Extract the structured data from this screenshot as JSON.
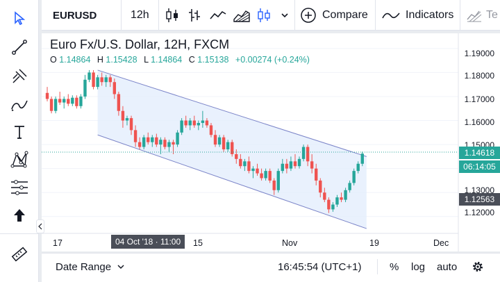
{
  "toolbar": {
    "symbol": "EURUSD",
    "interval": "12h",
    "compare_label": "Compare",
    "indicators_label": "Indicators",
    "templates_label": "Te"
  },
  "legend": {
    "title": "Euro Fx/U.S. Dollar, 12H, FXCM",
    "o_label": "O",
    "o_value": "1.14864",
    "h_label": "H",
    "h_value": "1.15428",
    "l_label": "L",
    "l_value": "1.14864",
    "c_label": "C",
    "c_value": "1.15138",
    "change": "+0.00274 (+0.24%)"
  },
  "price_scale": {
    "labels": [
      "1.19000",
      "1.18000",
      "1.17000",
      "1.16000",
      "1.15000",
      "1.14000",
      "1.13000",
      "1.12000"
    ],
    "current_price": "1.14618",
    "countdown": "06:14:05",
    "crosshair_price": "1.12563"
  },
  "time_axis": {
    "labels": [
      "17",
      "15",
      "Nov",
      "19",
      "Dec"
    ],
    "crosshair_label": "04 Oct '18 · 11:00"
  },
  "bottom_bar": {
    "date_range": "Date Range",
    "clock": "16:45:54 (UTC+1)",
    "percent": "%",
    "log": "log",
    "auto": "auto"
  },
  "colors": {
    "up": "#26a69a",
    "down": "#ef5350",
    "channel_fill": "#e3eefc",
    "channel_line": "#7b84c8",
    "price_tag_bg": "#26a69a",
    "crosshair_tag_bg": "#4a4e58",
    "accent": "#2962ff"
  },
  "chart_data": {
    "type": "candlestick",
    "ylim": [
      1.113,
      1.194
    ],
    "candles": [
      [
        1.1715,
        1.174,
        1.168,
        1.169
      ],
      [
        1.169,
        1.17,
        1.163,
        1.164
      ],
      [
        1.164,
        1.17,
        1.163,
        1.169
      ],
      [
        1.169,
        1.172,
        1.1665,
        1.1675
      ],
      [
        1.1675,
        1.17,
        1.165,
        1.169
      ],
      [
        1.169,
        1.171,
        1.166,
        1.167
      ],
      [
        1.167,
        1.1705,
        1.166,
        1.1695
      ],
      [
        1.1695,
        1.1705,
        1.165,
        1.166
      ],
      [
        1.166,
        1.171,
        1.165,
        1.17
      ],
      [
        1.17,
        1.179,
        1.169,
        1.177
      ],
      [
        1.177,
        1.181,
        1.176,
        1.18
      ],
      [
        1.18,
        1.181,
        1.173,
        1.174
      ],
      [
        1.174,
        1.179,
        1.173,
        1.178
      ],
      [
        1.178,
        1.18,
        1.1745,
        1.176
      ],
      [
        1.176,
        1.179,
        1.174,
        1.178
      ],
      [
        1.178,
        1.179,
        1.174,
        1.176
      ],
      [
        1.176,
        1.1775,
        1.169,
        1.171
      ],
      [
        1.171,
        1.172,
        1.162,
        1.164
      ],
      [
        1.164,
        1.166,
        1.157,
        1.16
      ],
      [
        1.16,
        1.162,
        1.158,
        1.161
      ],
      [
        1.161,
        1.162,
        1.154,
        1.156
      ],
      [
        1.156,
        1.158,
        1.149,
        1.151
      ],
      [
        1.151,
        1.153,
        1.148,
        1.149
      ],
      [
        1.149,
        1.154,
        1.148,
        1.153
      ],
      [
        1.153,
        1.155,
        1.15,
        1.151
      ],
      [
        1.151,
        1.154,
        1.149,
        1.153
      ],
      [
        1.153,
        1.1545,
        1.149,
        1.15
      ],
      [
        1.15,
        1.153,
        1.146,
        1.152
      ],
      [
        1.152,
        1.153,
        1.148,
        1.149
      ],
      [
        1.149,
        1.152,
        1.147,
        1.151
      ],
      [
        1.151,
        1.152,
        1.146,
        1.15
      ],
      [
        1.15,
        1.156,
        1.149,
        1.155
      ],
      [
        1.155,
        1.161,
        1.154,
        1.16
      ],
      [
        1.16,
        1.162,
        1.157,
        1.158
      ],
      [
        1.158,
        1.161,
        1.156,
        1.16
      ],
      [
        1.16,
        1.162,
        1.157,
        1.158
      ],
      [
        1.158,
        1.16,
        1.156,
        1.159
      ],
      [
        1.159,
        1.164,
        1.157,
        1.16
      ],
      [
        1.16,
        1.161,
        1.157,
        1.158
      ],
      [
        1.158,
        1.159,
        1.153,
        1.154
      ],
      [
        1.154,
        1.156,
        1.149,
        1.15
      ],
      [
        1.15,
        1.154,
        1.149,
        1.153
      ],
      [
        1.153,
        1.154,
        1.147,
        1.148
      ],
      [
        1.148,
        1.152,
        1.147,
        1.151
      ],
      [
        1.151,
        1.152,
        1.145,
        1.146
      ],
      [
        1.146,
        1.148,
        1.142,
        1.144
      ],
      [
        1.144,
        1.146,
        1.14,
        1.141
      ],
      [
        1.141,
        1.144,
        1.139,
        1.143
      ],
      [
        1.143,
        1.145,
        1.138,
        1.139
      ],
      [
        1.139,
        1.141,
        1.136,
        1.14
      ],
      [
        1.14,
        1.142,
        1.137,
        1.138
      ],
      [
        1.138,
        1.14,
        1.135,
        1.136
      ],
      [
        1.136,
        1.14,
        1.135,
        1.139
      ],
      [
        1.139,
        1.14,
        1.134,
        1.135
      ],
      [
        1.135,
        1.136,
        1.129,
        1.131
      ],
      [
        1.131,
        1.14,
        1.13,
        1.139
      ],
      [
        1.139,
        1.144,
        1.138,
        1.142
      ],
      [
        1.142,
        1.144,
        1.138,
        1.14
      ],
      [
        1.14,
        1.145,
        1.139,
        1.143
      ],
      [
        1.143,
        1.146,
        1.14,
        1.141
      ],
      [
        1.141,
        1.145,
        1.14,
        1.144
      ],
      [
        1.144,
        1.15,
        1.143,
        1.149
      ],
      [
        1.149,
        1.15,
        1.141,
        1.143
      ],
      [
        1.143,
        1.146,
        1.138,
        1.14
      ],
      [
        1.14,
        1.142,
        1.133,
        1.135
      ],
      [
        1.135,
        1.136,
        1.128,
        1.13
      ],
      [
        1.13,
        1.132,
        1.126,
        1.127
      ],
      [
        1.127,
        1.128,
        1.1215,
        1.123
      ],
      [
        1.123,
        1.126,
        1.122,
        1.125
      ],
      [
        1.125,
        1.129,
        1.124,
        1.128
      ],
      [
        1.128,
        1.13,
        1.126,
        1.127
      ],
      [
        1.127,
        1.132,
        1.126,
        1.131
      ],
      [
        1.131,
        1.135,
        1.13,
        1.134
      ],
      [
        1.134,
        1.14,
        1.133,
        1.139
      ],
      [
        1.139,
        1.143,
        1.138,
        1.142
      ],
      [
        1.142,
        1.147,
        1.141,
        1.1462
      ]
    ],
    "channel": {
      "upper": [
        [
          12,
          1.181
        ],
        [
          76,
          1.145
        ]
      ],
      "lower": [
        [
          12,
          1.154
        ],
        [
          76,
          1.115
        ]
      ]
    }
  }
}
